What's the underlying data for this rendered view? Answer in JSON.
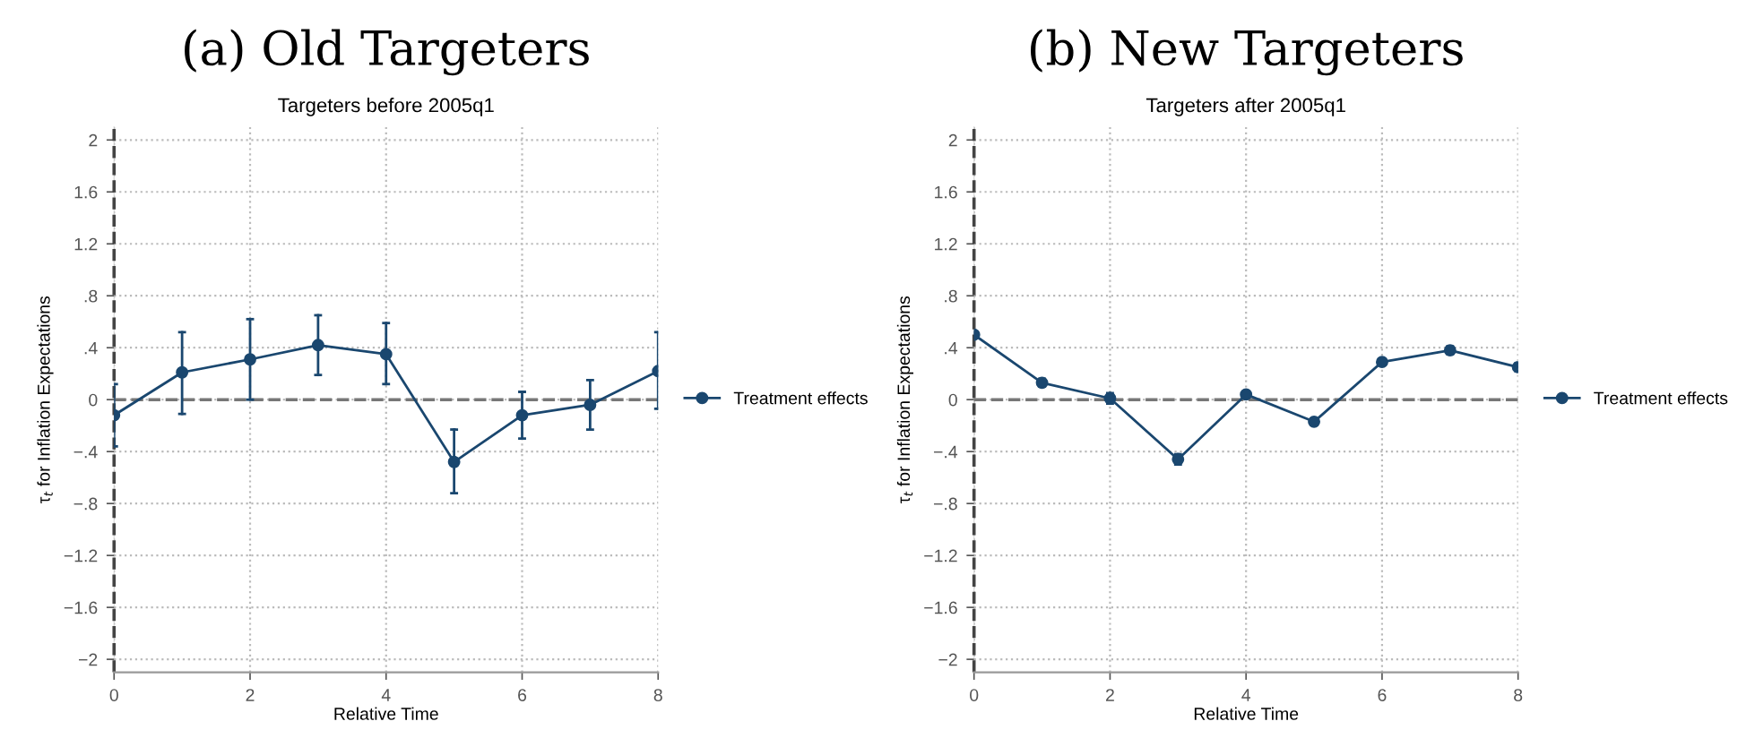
{
  "chart_data": [
    {
      "type": "line",
      "title": "(a) Old Targeters",
      "subtitle": "Targeters before 2005q1",
      "xlabel": "Relative Time",
      "ylabel": "τ$_{t}$ for Inflation Expectations",
      "x": [
        0,
        1,
        2,
        3,
        4,
        5,
        6,
        7,
        8
      ],
      "series": [
        {
          "name": "Treatment effects",
          "color": "#1a476f",
          "values": [
            -0.12,
            0.21,
            0.31,
            0.42,
            0.35,
            -0.48,
            -0.12,
            -0.04,
            0.22
          ],
          "errors": [
            [
              -0.36,
              0.12
            ],
            [
              -0.11,
              0.52
            ],
            [
              0.0,
              0.62
            ],
            [
              0.19,
              0.65
            ],
            [
              0.12,
              0.59
            ],
            [
              -0.72,
              -0.23
            ],
            [
              -0.3,
              0.06
            ],
            [
              -0.23,
              0.15
            ],
            [
              -0.07,
              0.52
            ]
          ]
        }
      ],
      "xlim": [
        0,
        8
      ],
      "xticks": [
        0,
        2,
        4,
        6,
        8
      ],
      "ylim": [
        -2.1,
        2.1
      ],
      "yticks": [
        {
          "value": -2,
          "label": "−2"
        },
        {
          "value": -1.6,
          "label": "−1.6"
        },
        {
          "value": -1.2,
          "label": "−1.2"
        },
        {
          "value": -0.8,
          "label": "−.8"
        },
        {
          "value": -0.4,
          "label": "−.4"
        },
        0,
        {
          "value": 0.4,
          "label": ".4"
        },
        {
          "value": 0.8,
          "label": ".8"
        },
        {
          "value": 1.2,
          "label": "1.2"
        },
        {
          "value": 1.6,
          "label": "1.6"
        },
        2
      ],
      "ref_lines": [
        {
          "axis": "x",
          "value": 0,
          "label": null,
          "color": "#444444",
          "line_style": "dashed"
        },
        {
          "axis": "y",
          "value": 0,
          "label": null,
          "color": "#777777",
          "line_style": "dashed"
        }
      ],
      "grid": true,
      "legend": "right",
      "marker": "circle",
      "line_style": "solid"
    },
    {
      "type": "line",
      "title": "(b) New Targeters",
      "subtitle": "Targeters after 2005q1",
      "xlabel": "Relative Time",
      "ylabel": "τ$_{t}$ for Inflation Expectations",
      "x": [
        0,
        1,
        2,
        3,
        4,
        5,
        6,
        7,
        8
      ],
      "series": [
        {
          "name": "Treatment effects",
          "color": "#1a476f",
          "values": [
            0.5,
            0.13,
            0.01,
            -0.46,
            0.04,
            -0.17,
            0.29,
            0.38,
            0.25
          ],
          "errors": [
            0.02,
            0.03,
            0.04,
            0.04,
            0.02,
            0.01,
            0.02,
            0.03,
            0.03
          ]
        }
      ],
      "xlim": [
        0,
        8
      ],
      "xticks": [
        0,
        2,
        4,
        6,
        8
      ],
      "ylim": [
        -2.1,
        2.1
      ],
      "yticks": [
        {
          "value": -2,
          "label": "−2"
        },
        {
          "value": -1.6,
          "label": "−1.6"
        },
        {
          "value": -1.2,
          "label": "−1.2"
        },
        {
          "value": -0.8,
          "label": "−.8"
        },
        {
          "value": -0.4,
          "label": "−.4"
        },
        0,
        {
          "value": 0.4,
          "label": ".4"
        },
        {
          "value": 0.8,
          "label": ".8"
        },
        {
          "value": 1.2,
          "label": "1.2"
        },
        {
          "value": 1.6,
          "label": "1.6"
        },
        2
      ],
      "ref_lines": [
        {
          "axis": "x",
          "value": 0,
          "label": null,
          "color": "#444444",
          "line_style": "dashed"
        },
        {
          "axis": "y",
          "value": 0,
          "label": null,
          "color": "#777777",
          "line_style": "dashed"
        }
      ],
      "grid": true,
      "legend": "right",
      "marker": "circle",
      "line_style": "solid"
    }
  ]
}
